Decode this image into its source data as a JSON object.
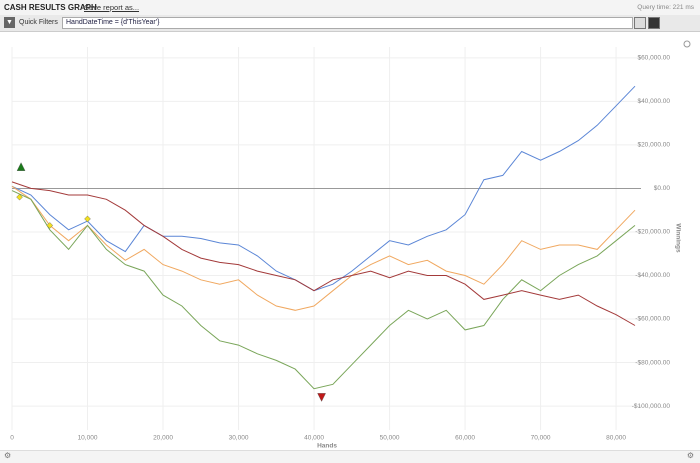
{
  "header": {
    "title": "CASH RESULTS GRAPH",
    "save": "Save report as...",
    "query_time": "Query time: 221 ms"
  },
  "filters": {
    "label": "Quick Filters",
    "expression": "HandDateTime = {d'ThisYear'}"
  },
  "chart_data": {
    "type": "line",
    "x_label": "Hands",
    "y_label": "Winnings",
    "x": [
      0,
      2500,
      5000,
      7500,
      10000,
      12500,
      15000,
      17500,
      20000,
      22500,
      25000,
      27500,
      30000,
      32500,
      35000,
      37500,
      40000,
      42500,
      45000,
      47500,
      50000,
      52500,
      55000,
      57500,
      60000,
      62500,
      65000,
      67500,
      70000,
      72500,
      75000,
      77500,
      80000,
      82500
    ],
    "series": [
      {
        "color": "#5b86d6",
        "values": [
          1000,
          -3000,
          -12000,
          -19000,
          -15000,
          -24000,
          -29000,
          -17000,
          -22000,
          -22000,
          -23000,
          -25000,
          -26000,
          -31000,
          -38000,
          -42000,
          -47000,
          -44000,
          -38000,
          -31000,
          -24000,
          -26000,
          -22000,
          -19000,
          -12000,
          4000,
          6000,
          17000,
          13000,
          17000,
          22000,
          29000,
          38000,
          47000
        ]
      },
      {
        "color": "#f0a860",
        "values": [
          1000,
          -5000,
          -17000,
          -24000,
          -17000,
          -26000,
          -33000,
          -28000,
          -35000,
          -38000,
          -42000,
          -44000,
          -42000,
          -49000,
          -54000,
          -56000,
          -54000,
          -47000,
          -40000,
          -35000,
          -31000,
          -35000,
          -33000,
          -38000,
          -40000,
          -44000,
          -35000,
          -24000,
          -28000,
          -26000,
          -26000,
          -28000,
          -19000,
          -10000
        ]
      },
      {
        "color": "#7aa65a",
        "values": [
          -1000,
          -5000,
          -19000,
          -28000,
          -17000,
          -28000,
          -35000,
          -38000,
          -49000,
          -54000,
          -63000,
          -70000,
          -72000,
          -76000,
          -79000,
          -83000,
          -92000,
          -90000,
          -81000,
          -72000,
          -63000,
          -56000,
          -60000,
          -56000,
          -65000,
          -63000,
          -51000,
          -42000,
          -47000,
          -40000,
          -35000,
          -31000,
          -24000,
          -17000
        ]
      },
      {
        "color": "#a33a3a",
        "values": [
          3000,
          0,
          -1000,
          -3000,
          -3000,
          -5000,
          -10000,
          -17000,
          -22000,
          -28000,
          -32000,
          -34000,
          -35000,
          -38000,
          -40000,
          -42000,
          -47000,
          -42000,
          -40000,
          -38000,
          -41000,
          -38000,
          -40000,
          -40000,
          -44000,
          -51000,
          -49000,
          -47000,
          -49000,
          -51000,
          -49000,
          -54000,
          -58000,
          -63000
        ]
      }
    ],
    "markers": [
      {
        "x": 1200,
        "y": 10000,
        "color": "#1a7a1a",
        "shape": "triangle-up"
      },
      {
        "x": 41000,
        "y": -96000,
        "color": "#c01818",
        "shape": "triangle-down"
      },
      {
        "x": 1000,
        "y": -4000,
        "color": "#f2e020",
        "shape": "diamond"
      },
      {
        "x": 5000,
        "y": -17000,
        "color": "#f2e020",
        "shape": "diamond"
      },
      {
        "x": 10000,
        "y": -14000,
        "color": "#f2e020",
        "shape": "diamond"
      }
    ],
    "xlim": [
      0,
      83300
    ],
    "ylim": [
      -111000,
      65000
    ],
    "xticks": [
      0,
      {
        "value": 10000,
        "label": "10,000"
      },
      {
        "value": 20000,
        "label": "20,000"
      },
      {
        "value": 30000,
        "label": "30,000"
      },
      {
        "value": 40000,
        "label": "40,000"
      },
      {
        "value": 50000,
        "label": "50,000"
      },
      {
        "value": 60000,
        "label": "60,000"
      },
      {
        "value": 70000,
        "label": "70,000"
      },
      {
        "value": 80000,
        "label": "80,000"
      }
    ],
    "yticks": [
      {
        "value": 60000,
        "label": "$60,000.00"
      },
      {
        "value": 40000,
        "label": "$40,000.00"
      },
      {
        "value": 20000,
        "label": "$20,000.00"
      },
      {
        "value": 0,
        "label": "$0.00"
      },
      {
        "value": -20000,
        "label": "-$20,000.00"
      },
      {
        "value": -40000,
        "label": "-$40,000.00"
      },
      {
        "value": -60000,
        "label": "-$60,000.00"
      },
      {
        "value": -80000,
        "label": "-$80,000.00"
      },
      {
        "value": -100000,
        "label": "-$100,000.00"
      }
    ],
    "grid": true,
    "zero_line": true
  }
}
